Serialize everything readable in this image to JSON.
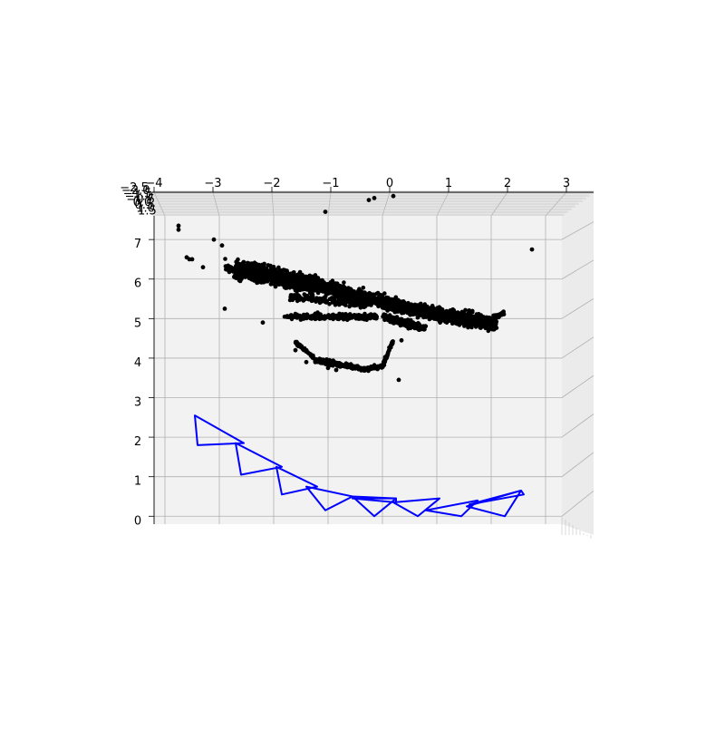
{
  "chart_data": {
    "type": "scatter",
    "projection": "3d",
    "title": "",
    "xlabel": "",
    "ylabel": "",
    "zlabel": "",
    "x_ticks": [
      "−4",
      "−3",
      "−2",
      "−1",
      "0",
      "1",
      "2",
      "3"
    ],
    "x_tick_values": [
      -4,
      -3,
      -2,
      -1,
      0,
      1,
      2,
      3
    ],
    "z_ticks": [
      "0",
      "1",
      "2",
      "3",
      "4",
      "5",
      "6",
      "7"
    ],
    "z_tick_values": [
      0,
      1,
      2,
      3,
      4,
      5,
      6,
      7
    ],
    "y_ticks": [
      "−2.5",
      "−2.0",
      "−1.5",
      "−1.0",
      "−0.5",
      "0.0",
      "0.5",
      "1.0",
      "1.5"
    ],
    "xlim": [
      -4.2,
      3.3
    ],
    "zlim": [
      -0.2,
      7.6
    ],
    "grid": true,
    "pane_color": "#f2f2f2",
    "series": [
      {
        "kind": "points",
        "color": "#000000",
        "clusters": [
          {
            "x0": -2.7,
            "x1": -1.2,
            "z0": 6.25,
            "z1": 5.85,
            "spread": 0.18,
            "count": 900
          },
          {
            "x0": -1.2,
            "x1": 0.5,
            "z0": 5.85,
            "z1": 5.25,
            "spread": 0.14,
            "count": 700
          },
          {
            "x0": 0.5,
            "x1": 2.1,
            "z0": 5.25,
            "z1": 4.85,
            "spread": 0.14,
            "count": 800
          },
          {
            "x0": -1.7,
            "x1": -0.3,
            "z0": 5.55,
            "z1": 5.35,
            "spread": 0.07,
            "count": 200
          },
          {
            "x0": -1.8,
            "x1": -0.1,
            "z0": 5.05,
            "z1": 5.05,
            "spread": 0.06,
            "count": 220
          },
          {
            "x0": 0.0,
            "x1": 0.8,
            "z0": 5.05,
            "z1": 4.75,
            "spread": 0.08,
            "count": 150
          },
          {
            "x0": -1.6,
            "x1": -1.25,
            "z0": 4.4,
            "z1": 4.0,
            "spread": 0.04,
            "count": 50
          },
          {
            "x0": -1.25,
            "x1": -0.4,
            "z0": 3.95,
            "z1": 3.75,
            "spread": 0.05,
            "count": 170
          },
          {
            "x0": -0.4,
            "x1": 0.0,
            "z0": 3.7,
            "z1": 3.8,
            "spread": 0.05,
            "count": 60
          },
          {
            "x0": 0.0,
            "x1": 0.2,
            "z0": 3.8,
            "z1": 4.45,
            "spread": 0.05,
            "count": 60
          },
          {
            "x0": -2.9,
            "x1": -2.6,
            "z0": 6.4,
            "z1": 6.0,
            "spread": 0.1,
            "count": 60
          },
          {
            "x0": 2.0,
            "x1": 2.25,
            "z0": 5.0,
            "z1": 5.15,
            "spread": 0.05,
            "count": 40
          }
        ],
        "points": [
          [
            -3.75,
            7.35
          ],
          [
            -3.75,
            7.25
          ],
          [
            -3.6,
            6.55
          ],
          [
            -3.55,
            6.5
          ],
          [
            -3.5,
            6.5
          ],
          [
            -3.3,
            6.3
          ],
          [
            -3.1,
            7.0
          ],
          [
            -2.9,
            5.25
          ],
          [
            -2.95,
            6.85
          ],
          [
            -2.2,
            4.9
          ],
          [
            -1.6,
            4.2
          ],
          [
            -1.05,
            7.7
          ],
          [
            -0.25,
            8.0
          ],
          [
            -0.15,
            8.05
          ],
          [
            0.2,
            8.1
          ],
          [
            0.3,
            3.45
          ],
          [
            0.35,
            4.45
          ],
          [
            2.75,
            6.75
          ],
          [
            -1.4,
            3.9
          ],
          [
            -1.0,
            3.75
          ],
          [
            -0.85,
            3.7
          ]
        ]
      },
      {
        "kind": "camera-frustums",
        "color": "#0000ff",
        "cameras": [
          {
            "apex": [
              -3.45,
              2.55
            ],
            "p": [
              -3.4,
              1.8
            ],
            "q": [
              -2.55,
              1.85
            ]
          },
          {
            "apex": [
              -2.7,
              1.85
            ],
            "p": [
              -2.6,
              1.05
            ],
            "q": [
              -1.85,
              1.25
            ]
          },
          {
            "apex": [
              -1.95,
              1.25
            ],
            "p": [
              -1.85,
              0.55
            ],
            "q": [
              -1.2,
              0.75
            ]
          },
          {
            "apex": [
              -1.4,
              0.75
            ],
            "p": [
              -1.05,
              0.15
            ],
            "q": [
              -0.55,
              0.5
            ]
          },
          {
            "apex": [
              -0.55,
              0.5
            ],
            "p": [
              -0.15,
              0.0
            ],
            "q": [
              0.25,
              0.45
            ]
          },
          {
            "apex": [
              -0.55,
              0.45
            ],
            "p": [
              0.25,
              0.45
            ],
            "q": [
              0.25,
              0.35
            ]
          },
          {
            "apex": [
              0.2,
              0.35
            ],
            "p": [
              0.65,
              0.0
            ],
            "q": [
              1.05,
              0.45
            ]
          },
          {
            "apex": [
              0.8,
              0.15
            ],
            "p": [
              1.45,
              0.0
            ],
            "q": [
              1.75,
              0.4
            ]
          },
          {
            "apex": [
              1.55,
              0.25
            ],
            "p": [
              2.25,
              0.0
            ],
            "q": [
              2.55,
              0.65
            ]
          },
          {
            "apex": [
              1.6,
              0.3
            ],
            "p": [
              2.55,
              0.65
            ],
            "q": [
              2.6,
              0.55
            ]
          }
        ]
      }
    ]
  }
}
